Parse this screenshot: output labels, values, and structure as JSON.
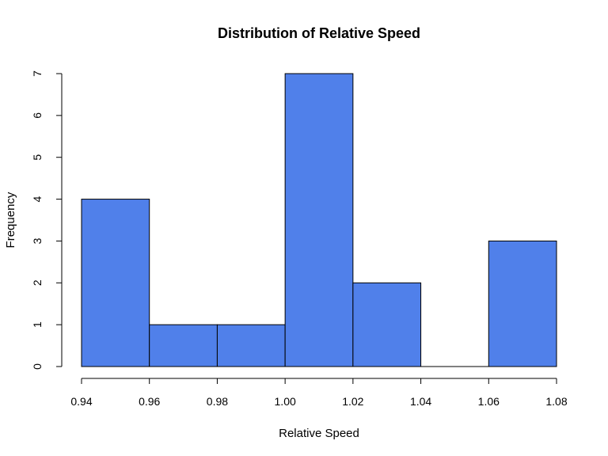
{
  "chart_data": {
    "type": "bar",
    "title": "Distribution of Relative Speed",
    "xlabel": "Relative Speed",
    "ylabel": "Frequency",
    "bins": [
      {
        "start": 0.94,
        "end": 0.96,
        "count": 4
      },
      {
        "start": 0.96,
        "end": 0.98,
        "count": 1
      },
      {
        "start": 0.98,
        "end": 1.0,
        "count": 1
      },
      {
        "start": 1.0,
        "end": 1.02,
        "count": 7
      },
      {
        "start": 1.02,
        "end": 1.04,
        "count": 2
      },
      {
        "start": 1.04,
        "end": 1.06,
        "count": 0
      },
      {
        "start": 1.06,
        "end": 1.08,
        "count": 3
      }
    ],
    "xlim": [
      0.94,
      1.08
    ],
    "ylim": [
      0,
      7
    ],
    "x_ticks": [
      "0.94",
      "0.96",
      "0.98",
      "1.00",
      "1.02",
      "1.04",
      "1.06",
      "1.08"
    ],
    "y_ticks": [
      "0",
      "1",
      "2",
      "3",
      "4",
      "5",
      "6",
      "7"
    ],
    "bar_color": "#5080EA",
    "grid": false
  }
}
